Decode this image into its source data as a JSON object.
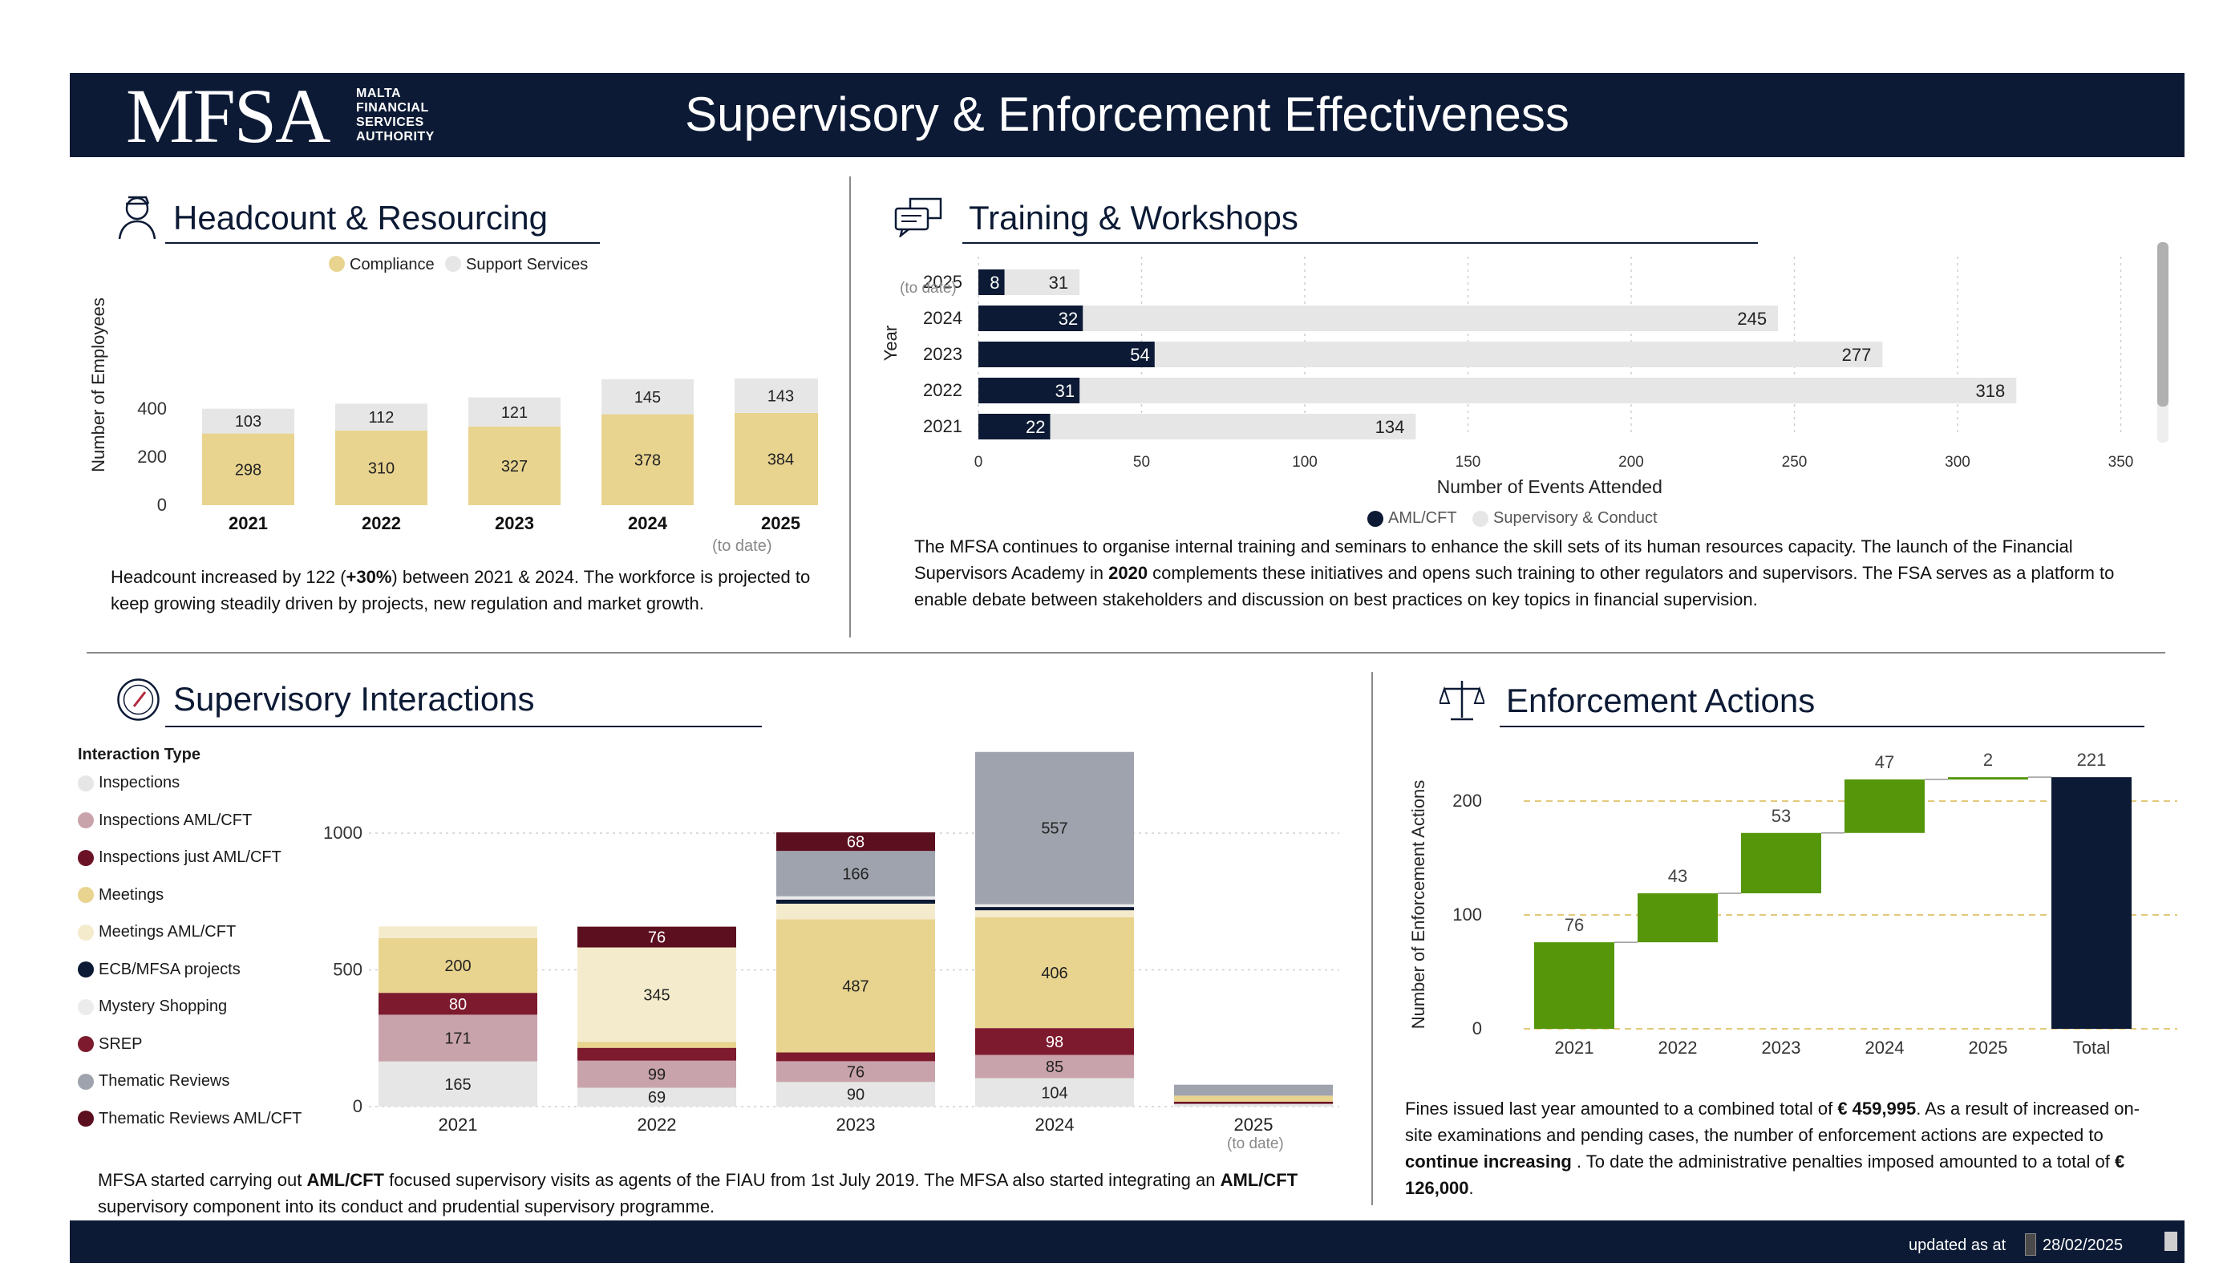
{
  "header": {
    "logo_word": "MFSA",
    "logo_sub": [
      "MALTA",
      "FINANCIAL",
      "SERVICES",
      "AUTHORITY"
    ],
    "title": "Supervisory & Enforcement Effectiveness"
  },
  "footer": {
    "updated_label": "updated as at",
    "updated_date": "28/02/2025"
  },
  "colors": {
    "navy": "#0c1a35",
    "compliance": "#e8d48f",
    "support": "#e6e6e6",
    "green": "#55960a"
  },
  "headcount": {
    "title": "Headcount & Resourcing",
    "icon": "person-icon",
    "note_2025": "(to date)",
    "text_parts": [
      "Headcount increased by 122 (",
      "+30%",
      ") between 2021 & 2024. The workforce is projected to keep growing steadily driven by projects, new regulation and market growth."
    ]
  },
  "training": {
    "title": "Training & Workshops",
    "icon": "chat-bubbles-icon",
    "note_2025": "(to date)",
    "text_parts": [
      "The MFSA continues to organise internal training and seminars to enhance the skill sets of its human resources capacity. The launch of the Financial Supervisors Academy in ",
      "2020",
      " complements these initiatives and opens such training to other regulators and supervisors. The FSA serves as a platform to enable debate between stakeholders and discussion on best practices on key topics in financial supervision."
    ]
  },
  "interactions": {
    "title": "Supervisory Interactions",
    "icon": "gauge-icon",
    "legend_title": "Interaction Type",
    "note_2025": "(to date)",
    "text_parts": [
      "MFSA started carrying out ",
      "AML/CFT",
      " focused supervisory visits as agents of the FIAU from 1st July 2019. The MFSA also started integrating an ",
      "AML/CFT",
      " supervisory component into its conduct and prudential supervisory programme."
    ]
  },
  "enforcement": {
    "title": "Enforcement Actions",
    "icon": "scales-icon",
    "text_parts": [
      "Fines issued last year amounted to a combined total of ",
      "€ 459,995",
      ". As a result of increased on-site examinations and pending cases, the number of enforcement actions are expected to ",
      "continue increasing",
      " . To date the administrative penalties imposed amounted to a total of  ",
      "€ 126,000",
      "."
    ]
  },
  "chart_data": [
    {
      "id": "headcount",
      "type": "bar",
      "stacked": true,
      "categories": [
        "2021",
        "2022",
        "2023",
        "2024",
        "2025"
      ],
      "series": [
        {
          "name": "Compliance",
          "color": "#e8d48f",
          "values": [
            298,
            310,
            327,
            378,
            384
          ]
        },
        {
          "name": "Support Services",
          "color": "#e6e6e6",
          "values": [
            103,
            112,
            121,
            145,
            143
          ]
        }
      ],
      "ylabel": "Number of Employees",
      "yticks": [
        0,
        200,
        400
      ],
      "ylim": [
        0,
        470
      ],
      "legend": "top"
    },
    {
      "id": "training",
      "type": "bar",
      "orientation": "horizontal",
      "categories": [
        "2025",
        "2024",
        "2023",
        "2022",
        "2021"
      ],
      "series": [
        {
          "name": "AML/CFT",
          "color": "#0c1a35",
          "values": [
            8,
            32,
            54,
            31,
            22
          ]
        },
        {
          "name": "Supervisory & Conduct",
          "color": "#e6e6e6",
          "values": [
            31,
            245,
            277,
            318,
            134
          ]
        }
      ],
      "xlabel": "Number of Events Attended",
      "ylabel": "Year",
      "xticks": [
        0,
        50,
        100,
        150,
        200,
        250,
        300,
        350
      ],
      "xlim": [
        0,
        350
      ],
      "legend": "bottom"
    },
    {
      "id": "interactions",
      "type": "bar",
      "stacked": true,
      "categories": [
        "2021",
        "2022",
        "2023",
        "2024",
        "2025"
      ],
      "series": [
        {
          "name": "Inspections",
          "color": "#e6e6e6",
          "values": [
            165,
            69,
            90,
            104,
            10
          ]
        },
        {
          "name": "Inspections  AML/CFT",
          "color": "#c9a3ab",
          "values": [
            171,
            99,
            76,
            85,
            0
          ]
        },
        {
          "name": "Inspections just AML/CFT",
          "color": "#6b1226",
          "values": [
            0,
            0,
            0,
            0,
            8
          ]
        },
        {
          "name": "SREP",
          "color": "#7d1a2e",
          "values": [
            80,
            47,
            32,
            98,
            0
          ]
        },
        {
          "name": "Meetings",
          "color": "#e8d48f",
          "values": [
            200,
            22,
            487,
            406,
            22
          ]
        },
        {
          "name": "Meetings  AML/CFT",
          "color": "#f4ebcd",
          "values": [
            43,
            345,
            57,
            25,
            0
          ]
        },
        {
          "name": "ECB/MFSA projects",
          "color": "#0c1a35",
          "values": [
            0,
            0,
            15,
            12,
            0
          ]
        },
        {
          "name": "Mystery Shopping",
          "color": "#ececec",
          "values": [
            0,
            0,
            12,
            10,
            0
          ]
        },
        {
          "name": "Thematic Reviews",
          "color": "#9ea3ad",
          "values": [
            0,
            0,
            166,
            557,
            40
          ]
        },
        {
          "name": "Thematic Reviews   AML/CFT",
          "color": "#5c0f1f",
          "values": [
            0,
            76,
            68,
            0,
            0
          ]
        }
      ],
      "yticks": [
        0,
        500,
        1000
      ],
      "ylim": [
        0,
        1300
      ],
      "legend": "left"
    },
    {
      "id": "enforcement",
      "type": "bar",
      "subtype": "waterfall",
      "categories": [
        "2021",
        "2022",
        "2023",
        "2024",
        "2025",
        "Total"
      ],
      "values": [
        76,
        43,
        53,
        47,
        2,
        221
      ],
      "ylabel": "Number of Enforcement Actions",
      "yticks": [
        0,
        100,
        200
      ],
      "ylim": [
        0,
        250
      ],
      "grid": "dashed"
    }
  ]
}
